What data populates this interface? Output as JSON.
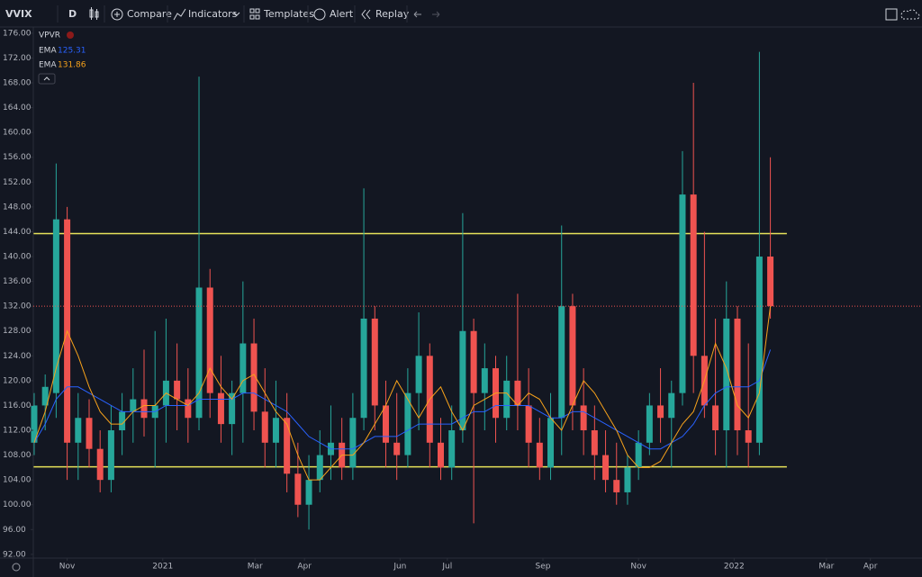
{
  "toolbar": {
    "symbol": "VVIX",
    "interval": "D",
    "compare": "Compare",
    "indicators": "Indicators",
    "templates": "Templates",
    "alert": "Alert",
    "replay": "Replay"
  },
  "chart_data": {
    "type": "candlestick",
    "legend_label": "VPVR",
    "open": [
      110,
      116,
      118,
      146,
      110,
      114,
      109,
      104,
      112,
      115,
      117,
      114,
      116,
      120,
      117,
      114,
      135,
      118,
      113,
      118,
      126,
      115,
      110,
      114,
      105,
      100,
      104,
      108,
      110,
      106,
      114,
      130,
      116,
      110,
      108,
      118,
      124,
      110,
      106,
      112,
      128,
      118,
      122,
      114,
      120,
      116,
      110,
      106,
      114,
      132,
      116,
      112,
      108,
      104,
      102,
      106,
      110,
      116,
      114,
      118,
      150,
      124,
      116,
      112,
      130,
      112,
      110,
      140
    ],
    "high": [
      118,
      121,
      155,
      148,
      118,
      117,
      112,
      116,
      118,
      122,
      125,
      128,
      130,
      126,
      122,
      169,
      138,
      124,
      120,
      136,
      130,
      122,
      120,
      118,
      110,
      108,
      112,
      116,
      114,
      118,
      151,
      132,
      120,
      118,
      122,
      131,
      126,
      114,
      116,
      147,
      130,
      126,
      124,
      124,
      134,
      122,
      114,
      118,
      145,
      134,
      122,
      116,
      112,
      110,
      108,
      112,
      118,
      122,
      120,
      157,
      168,
      144,
      130,
      136,
      132,
      126,
      173,
      156
    ],
    "low": [
      108,
      112,
      114,
      104,
      104,
      106,
      102,
      102,
      108,
      110,
      111,
      106,
      110,
      112,
      110,
      112,
      114,
      110,
      108,
      110,
      112,
      106,
      106,
      102,
      98,
      96,
      102,
      104,
      104,
      104,
      112,
      112,
      106,
      104,
      106,
      112,
      106,
      104,
      104,
      110,
      97,
      112,
      110,
      112,
      112,
      106,
      104,
      104,
      108,
      112,
      108,
      104,
      102,
      100,
      100,
      104,
      108,
      110,
      106,
      116,
      118,
      114,
      108,
      106,
      108,
      106,
      108,
      130
    ],
    "close": [
      116,
      119,
      146,
      110,
      114,
      109,
      104,
      112,
      115,
      117,
      114,
      116,
      120,
      117,
      114,
      135,
      118,
      113,
      118,
      126,
      115,
      110,
      114,
      105,
      100,
      104,
      108,
      110,
      106,
      114,
      130,
      116,
      110,
      108,
      118,
      124,
      110,
      106,
      112,
      128,
      118,
      122,
      114,
      120,
      116,
      110,
      106,
      114,
      132,
      116,
      112,
      108,
      104,
      102,
      106,
      110,
      116,
      114,
      118,
      150,
      124,
      116,
      112,
      130,
      112,
      110,
      140,
      132
    ],
    "up_color": "#26a69a",
    "down_color": "#ef5350",
    "series": [
      {
        "name": "EMA",
        "value": 125.31,
        "color": "#2962ff",
        "values": [
          110,
          113,
          117,
          119,
          119,
          118,
          117,
          116,
          115,
          115,
          115,
          115,
          116,
          116,
          116,
          117,
          117,
          117,
          117,
          118,
          118,
          117,
          116,
          115,
          113,
          111,
          110,
          109,
          109,
          109,
          110,
          111,
          111,
          111,
          112,
          113,
          113,
          113,
          113,
          114,
          115,
          115,
          116,
          116,
          116,
          116,
          115,
          114,
          114,
          115,
          115,
          114,
          113,
          112,
          111,
          110,
          109,
          109,
          110,
          111,
          113,
          116,
          118,
          119,
          119,
          119,
          120,
          125
        ]
      },
      {
        "name": "EMA",
        "value": 131.86,
        "color": "#f7a21b",
        "values": [
          110,
          115,
          122,
          128,
          124,
          119,
          115,
          113,
          113,
          115,
          116,
          116,
          118,
          117,
          116,
          118,
          122,
          119,
          117,
          120,
          121,
          118,
          115,
          113,
          108,
          104,
          104,
          106,
          108,
          108,
          110,
          113,
          116,
          120,
          117,
          114,
          117,
          119,
          115,
          112,
          116,
          117,
          118,
          118,
          116,
          118,
          117,
          114,
          112,
          116,
          120,
          118,
          115,
          112,
          108,
          106,
          106,
          107,
          110,
          113,
          115,
          120,
          126,
          122,
          116,
          114,
          118,
          132
        ]
      }
    ],
    "levels": [
      {
        "value": 143.7,
        "color": "#e8e35a"
      },
      {
        "value": 106.1,
        "color": "#e8e35a"
      }
    ],
    "ylim": [
      91.4,
      177.0
    ],
    "yticks": [
      {
        "value": 92,
        "label": "92.00"
      },
      {
        "value": 96,
        "label": "96.00"
      },
      {
        "value": 100,
        "label": "100.00"
      },
      {
        "value": 104,
        "label": "104.00"
      },
      {
        "value": 108,
        "label": "108.00"
      },
      {
        "value": 112,
        "label": "112.00"
      },
      {
        "value": 116,
        "label": "116.00"
      },
      {
        "value": 120,
        "label": "120.00"
      },
      {
        "value": 124,
        "label": "124.00"
      },
      {
        "value": 128,
        "label": "128.00"
      },
      {
        "value": 132,
        "label": "132.00"
      },
      {
        "value": 136,
        "label": "136.00"
      },
      {
        "value": 140,
        "label": "140.00"
      },
      {
        "value": 144,
        "label": "144.00"
      },
      {
        "value": 148,
        "label": "148.00"
      },
      {
        "value": 152,
        "label": "152.00"
      },
      {
        "value": 156,
        "label": "156.00"
      },
      {
        "value": 160,
        "label": "160.00"
      },
      {
        "value": 164,
        "label": "164.00"
      },
      {
        "value": 168,
        "label": "168.00"
      },
      {
        "value": 172,
        "label": "172.00"
      },
      {
        "value": 176,
        "label": "176.00"
      }
    ],
    "xlim": [
      -0.08,
      80.8
    ],
    "xticks": [
      {
        "value": 3.0,
        "label": "Nov"
      },
      {
        "value": 11.7,
        "label": "2021"
      },
      {
        "value": 20.1,
        "label": "Mar"
      },
      {
        "value": 24.6,
        "label": "Apr"
      },
      {
        "value": 33.3,
        "label": "Jun"
      },
      {
        "value": 37.6,
        "label": "Jul"
      },
      {
        "value": 46.3,
        "label": "Sep"
      },
      {
        "value": 55.0,
        "label": "Nov"
      },
      {
        "value": 63.7,
        "label": "2022"
      },
      {
        "value": 72.1,
        "label": "Mar"
      },
      {
        "value": 76.1,
        "label": "Apr"
      }
    ]
  }
}
